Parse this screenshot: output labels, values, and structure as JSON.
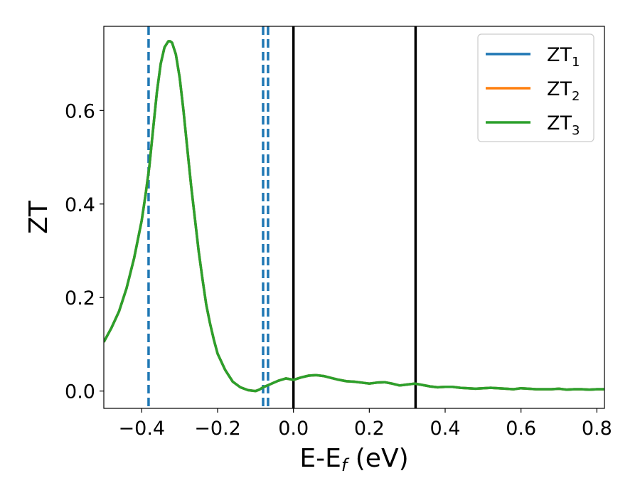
{
  "chart_data": {
    "type": "line",
    "title": "",
    "xlabel": {
      "base": "E-E",
      "sub": "f",
      "suffix": " (eV)"
    },
    "ylabel": "ZT",
    "xlim": [
      -0.5,
      0.82
    ],
    "ylim": [
      -0.037,
      0.78
    ],
    "grid": false,
    "legend_position": "top-right",
    "x_ticks": [
      {
        "value": -0.4,
        "label": "−0.4"
      },
      {
        "value": -0.2,
        "label": "−0.2"
      },
      {
        "value": 0.0,
        "label": "0.0"
      },
      {
        "value": 0.2,
        "label": "0.2"
      },
      {
        "value": 0.4,
        "label": "0.4"
      },
      {
        "value": 0.6,
        "label": "0.6"
      },
      {
        "value": 0.8,
        "label": "0.8"
      }
    ],
    "y_ticks": [
      {
        "value": 0.0,
        "label": "0.0"
      },
      {
        "value": 0.2,
        "label": "0.2"
      },
      {
        "value": 0.4,
        "label": "0.4"
      },
      {
        "value": 0.6,
        "label": "0.6"
      }
    ],
    "series": [
      {
        "name": {
          "base": "ZT",
          "sub": "1"
        },
        "color": "#1f77b4"
      },
      {
        "name": {
          "base": "ZT",
          "sub": "2"
        },
        "color": "#ff7f0e"
      },
      {
        "name": {
          "base": "ZT",
          "sub": "3"
        },
        "color": "#2ca02c"
      }
    ],
    "x": [
      -0.5,
      -0.48,
      -0.46,
      -0.44,
      -0.42,
      -0.4,
      -0.39,
      -0.38,
      -0.37,
      -0.36,
      -0.35,
      -0.34,
      -0.33,
      -0.325,
      -0.32,
      -0.31,
      -0.3,
      -0.29,
      -0.28,
      -0.27,
      -0.26,
      -0.25,
      -0.24,
      -0.23,
      -0.22,
      -0.21,
      -0.2,
      -0.18,
      -0.16,
      -0.14,
      -0.12,
      -0.1,
      -0.09,
      -0.08,
      -0.06,
      -0.04,
      -0.02,
      0.0,
      0.02,
      0.04,
      0.06,
      0.08,
      0.1,
      0.12,
      0.14,
      0.16,
      0.18,
      0.2,
      0.22,
      0.24,
      0.26,
      0.28,
      0.3,
      0.32,
      0.34,
      0.36,
      0.38,
      0.4,
      0.42,
      0.44,
      0.46,
      0.48,
      0.5,
      0.52,
      0.54,
      0.56,
      0.58,
      0.6,
      0.62,
      0.64,
      0.66,
      0.68,
      0.7,
      0.72,
      0.74,
      0.76,
      0.78,
      0.8,
      0.82
    ],
    "values": [
      0.105,
      0.135,
      0.17,
      0.22,
      0.285,
      0.365,
      0.42,
      0.48,
      0.56,
      0.64,
      0.7,
      0.735,
      0.748,
      0.748,
      0.745,
      0.72,
      0.67,
      0.6,
      0.52,
      0.44,
      0.37,
      0.3,
      0.24,
      0.185,
      0.145,
      0.11,
      0.08,
      0.045,
      0.02,
      0.008,
      0.002,
      0.0,
      0.003,
      0.008,
      0.015,
      0.022,
      0.027,
      0.024,
      0.029,
      0.033,
      0.034,
      0.032,
      0.028,
      0.024,
      0.021,
      0.02,
      0.018,
      0.016,
      0.018,
      0.019,
      0.016,
      0.012,
      0.014,
      0.016,
      0.013,
      0.01,
      0.008,
      0.009,
      0.009,
      0.007,
      0.006,
      0.005,
      0.006,
      0.007,
      0.006,
      0.005,
      0.004,
      0.006,
      0.005,
      0.004,
      0.004,
      0.004,
      0.005,
      0.003,
      0.004,
      0.004,
      0.003,
      0.004,
      0.004
    ],
    "vlines": [
      {
        "x": -0.382,
        "style": "dashed",
        "color": "#1f77b4"
      },
      {
        "x": -0.08,
        "style": "dashed",
        "color": "#1f77b4"
      },
      {
        "x": -0.067,
        "style": "dashed",
        "color": "#1f77b4"
      },
      {
        "x": 0.0,
        "style": "solid",
        "color": "#000000"
      },
      {
        "x": 0.322,
        "style": "solid",
        "color": "#000000"
      }
    ]
  }
}
